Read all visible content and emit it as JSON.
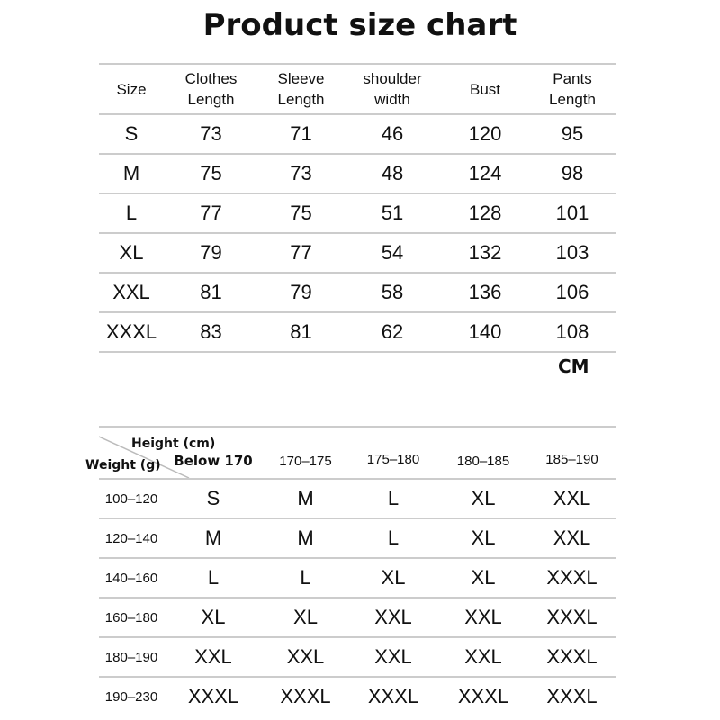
{
  "title": "Product size chart",
  "size_table": {
    "headers": [
      "Size",
      "Clothes Length",
      "Sleeve Length",
      "shoulder width",
      "Bust",
      "Pants Length"
    ],
    "rows": [
      [
        "S",
        "73",
        "71",
        "46",
        "120",
        "95"
      ],
      [
        "M",
        "75",
        "73",
        "48",
        "124",
        "98"
      ],
      [
        "L",
        "77",
        "75",
        "51",
        "128",
        "101"
      ],
      [
        "XL",
        "79",
        "77",
        "54",
        "132",
        "103"
      ],
      [
        "XXL",
        "81",
        "79",
        "58",
        "136",
        "106"
      ],
      [
        "XXXL",
        "83",
        "81",
        "62",
        "140",
        "108"
      ]
    ],
    "unit": "CM"
  },
  "fit_table": {
    "row_axis_label": "Weight (g)",
    "col_axis_label": "Height (cm)",
    "headers": [
      "Below 170",
      "170–175",
      "175–180",
      "180–185",
      "185–190"
    ],
    "rows": [
      {
        "weight": "100–120",
        "sizes": [
          "S",
          "M",
          "L",
          "XL",
          "XXL"
        ]
      },
      {
        "weight": "120–140",
        "sizes": [
          "M",
          "M",
          "L",
          "XL",
          "XXL"
        ]
      },
      {
        "weight": "140–160",
        "sizes": [
          "L",
          "L",
          "XL",
          "XL",
          "XXXL"
        ]
      },
      {
        "weight": "160–180",
        "sizes": [
          "XL",
          "XL",
          "XXL",
          "XXL",
          "XXXL"
        ]
      },
      {
        "weight": "180–190",
        "sizes": [
          "XXL",
          "XXL",
          "XXL",
          "XXL",
          "XXXL"
        ]
      },
      {
        "weight": "190–230",
        "sizes": [
          "XXXL",
          "XXXL",
          "XXXL",
          "XXXL",
          "XXXL"
        ]
      }
    ]
  }
}
